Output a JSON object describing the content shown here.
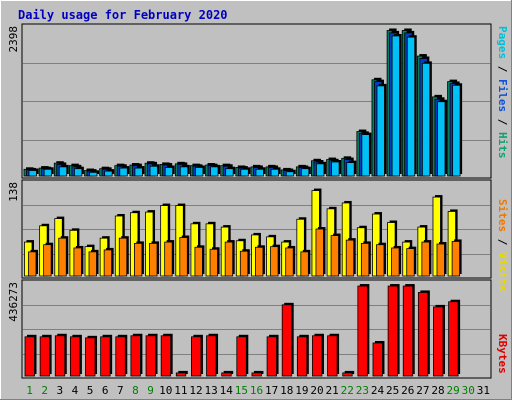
{
  "title": "Daily usage for February 2020",
  "right_labels": {
    "panel1": [
      {
        "text": "Pages",
        "color": "#00c0d8"
      },
      {
        "text": " / ",
        "color": "#000000"
      },
      {
        "text": "Files",
        "color": "#1050d8"
      },
      {
        "text": " / ",
        "color": "#000000"
      },
      {
        "text": "Hits",
        "color": "#10a070"
      }
    ],
    "panel2": [
      {
        "text": "Sites",
        "color": "#f07800"
      },
      {
        "text": " / ",
        "color": "#000000"
      },
      {
        "text": "Visits",
        "color": "#e8d800"
      }
    ],
    "panel3": [
      {
        "text": "KBytes",
        "color": "#e00000"
      }
    ]
  },
  "colors": {
    "background": "#c0c0c0",
    "hits": "#008060",
    "files": "#0040c0",
    "pages": "#00c0f8",
    "visits": "#ffff00",
    "sites": "#ff8000",
    "kbytes": "#ff0000",
    "title": "#0000c0",
    "weekend_day": "#008000"
  },
  "chart_data": [
    {
      "type": "bar",
      "panel": "hits_files_pages",
      "ymax_label": "2398",
      "ylim": [
        0,
        2398
      ],
      "categories": [
        "1",
        "2",
        "3",
        "4",
        "5",
        "6",
        "7",
        "8",
        "9",
        "10",
        "11",
        "12",
        "13",
        "14",
        "15",
        "16",
        "17",
        "18",
        "19",
        "20",
        "21",
        "22",
        "23",
        "24",
        "25",
        "26",
        "27",
        "28",
        "29",
        "30",
        "31"
      ],
      "weekend_days": [
        "1",
        "2",
        "8",
        "9",
        "15",
        "16",
        "22",
        "23",
        "29",
        "30"
      ],
      "series": [
        {
          "name": "Hits",
          "values": [
            110,
            130,
            210,
            170,
            90,
            120,
            170,
            180,
            210,
            190,
            200,
            170,
            180,
            170,
            140,
            150,
            150,
            100,
            150,
            250,
            270,
            290,
            730,
            1580,
            2390,
            2390,
            1970,
            1300,
            1550,
            0,
            0
          ]
        },
        {
          "name": "Files",
          "values": [
            100,
            120,
            190,
            150,
            80,
            110,
            160,
            170,
            200,
            180,
            190,
            160,
            170,
            160,
            130,
            140,
            140,
            90,
            140,
            230,
            250,
            270,
            700,
            1550,
            2350,
            2350,
            1930,
            1260,
            1520,
            0,
            0
          ]
        },
        {
          "name": "Pages",
          "values": [
            90,
            110,
            150,
            120,
            60,
            80,
            130,
            130,
            160,
            140,
            150,
            140,
            150,
            120,
            110,
            110,
            110,
            70,
            120,
            200,
            230,
            220,
            680,
            1480,
            2300,
            2280,
            1850,
            1220,
            1490,
            0,
            0
          ]
        }
      ]
    },
    {
      "type": "bar",
      "panel": "visits_sites",
      "ymax_label": "138",
      "ylim": [
        0,
        138
      ],
      "categories": [
        "1",
        "2",
        "3",
        "4",
        "5",
        "6",
        "7",
        "8",
        "9",
        "10",
        "11",
        "12",
        "13",
        "14",
        "15",
        "16",
        "17",
        "18",
        "19",
        "20",
        "21",
        "22",
        "23",
        "24",
        "25",
        "26",
        "27",
        "28",
        "29",
        "30",
        "31"
      ],
      "series": [
        {
          "name": "Visits",
          "values": [
            52,
            77,
            88,
            70,
            45,
            58,
            92,
            97,
            98,
            108,
            108,
            80,
            80,
            75,
            54,
            63,
            60,
            52,
            87,
            131,
            103,
            112,
            74,
            95,
            82,
            52,
            75,
            121,
            99,
            0,
            0
          ]
        },
        {
          "name": "Sites",
          "values": [
            37,
            48,
            58,
            43,
            37,
            40,
            58,
            50,
            50,
            52,
            59,
            44,
            41,
            52,
            38,
            44,
            45,
            43,
            37,
            72,
            62,
            55,
            50,
            48,
            43,
            42,
            52,
            49,
            53,
            0,
            0
          ]
        }
      ]
    },
    {
      "type": "bar",
      "panel": "kbytes",
      "ymax_label": "436273",
      "ylim": [
        0,
        436273
      ],
      "categories": [
        "1",
        "2",
        "3",
        "4",
        "5",
        "6",
        "7",
        "8",
        "9",
        "10",
        "11",
        "12",
        "13",
        "14",
        "15",
        "16",
        "17",
        "18",
        "19",
        "20",
        "21",
        "22",
        "23",
        "24",
        "25",
        "26",
        "27",
        "28",
        "29",
        "30",
        "31"
      ],
      "series": [
        {
          "name": "KBytes",
          "values": [
            190000,
            190000,
            195000,
            190000,
            185000,
            190000,
            190000,
            195000,
            195000,
            195000,
            15000,
            190000,
            195000,
            15000,
            190000,
            15000,
            190000,
            345000,
            190000,
            195000,
            195000,
            15000,
            436000,
            160000,
            436000,
            436000,
            405000,
            335000,
            360000,
            0,
            0
          ]
        }
      ]
    }
  ]
}
